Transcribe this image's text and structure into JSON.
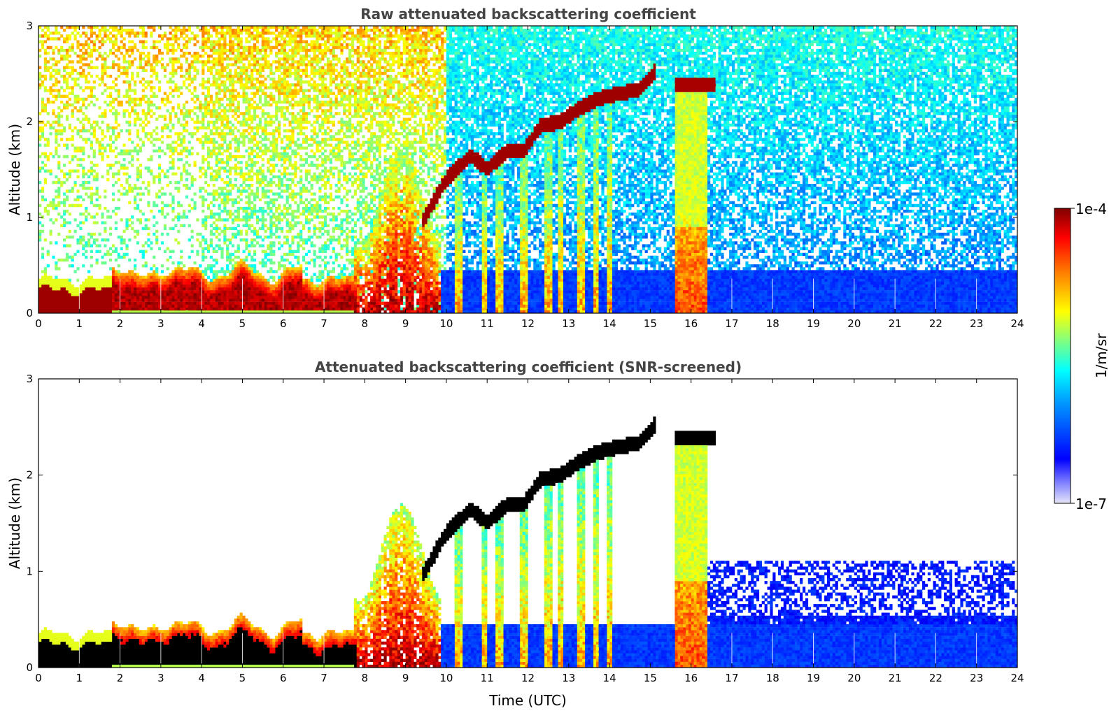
{
  "chart_data": [
    {
      "type": "heatmap",
      "title": "Raw attenuated backscattering coefficient",
      "xlabel": "",
      "ylabel": "Altitude (km)",
      "xlim": [
        0,
        24
      ],
      "ylim": [
        0,
        3
      ],
      "x_ticks": [
        "0",
        "1",
        "2",
        "3",
        "4",
        "5",
        "6",
        "7",
        "8",
        "9",
        "10",
        "11",
        "12",
        "13",
        "14",
        "15",
        "16",
        "17",
        "18",
        "19",
        "20",
        "21",
        "22",
        "23",
        "24"
      ],
      "y_ticks": [
        "0",
        "1",
        "2",
        "3"
      ],
      "screened": false
    },
    {
      "type": "heatmap",
      "title": "Attenuated backscattering coefficient (SNR-screened)",
      "xlabel": "Time (UTC)",
      "ylabel": "Altitude (km)",
      "xlim": [
        0,
        24
      ],
      "ylim": [
        0,
        3
      ],
      "x_ticks": [
        "0",
        "1",
        "2",
        "3",
        "4",
        "5",
        "6",
        "7",
        "8",
        "9",
        "10",
        "11",
        "12",
        "13",
        "14",
        "15",
        "16",
        "17",
        "18",
        "19",
        "20",
        "21",
        "22",
        "23",
        "24"
      ],
      "y_ticks": [
        "0",
        "1",
        "2",
        "3"
      ],
      "screened": true
    }
  ],
  "colorbar": {
    "label": "1/m/sr",
    "max_label": "1e-4",
    "min_label": "1e-7",
    "colormap": "jet",
    "colors": [
      "#e6e6fa",
      "#0000ff",
      "#00a0ff",
      "#00ffff",
      "#80ff80",
      "#ffff00",
      "#ff8000",
      "#ff0000",
      "#800000"
    ]
  }
}
